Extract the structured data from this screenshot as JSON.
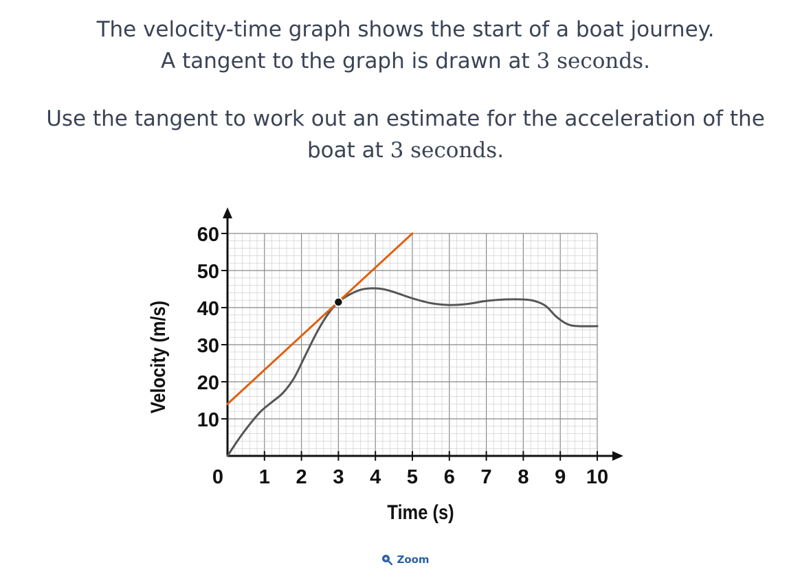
{
  "question": {
    "line1": "The velocity-time graph shows the start of a boat journey.",
    "line2_prefix": "A tangent to the graph is drawn at ",
    "line2_math": "3 seconds",
    "line2_suffix": ".",
    "line3": "Use the tangent to work out an estimate for the acceleration of the",
    "line4_prefix": "boat at ",
    "line4_math": "3 seconds",
    "line4_suffix": "."
  },
  "zoom": {
    "label": "Zoom",
    "icon": "zoom-in-icon"
  },
  "colors": {
    "curve": "#555555",
    "tangent": "#e06010",
    "grid_minor": "#c8c8c8",
    "grid_major": "#888888",
    "text": "#3a4356",
    "link": "#2b5fa8"
  },
  "chart_data": {
    "type": "line",
    "xlabel": "Time (s)",
    "ylabel": "Velocity (m/s)",
    "xlim": [
      0,
      10
    ],
    "ylim": [
      0,
      60
    ],
    "x_ticks": [
      "0",
      "1",
      "2",
      "3",
      "4",
      "5",
      "6",
      "7",
      "8",
      "9",
      "10"
    ],
    "y_ticks": [
      "10",
      "20",
      "30",
      "40",
      "50",
      "60"
    ],
    "grid": true,
    "series": [
      {
        "role": "curve",
        "x": [
          0,
          0.3,
          0.6,
          0.9,
          1.2,
          1.5,
          1.8,
          2.1,
          2.4,
          2.7,
          3.0,
          3.3,
          3.6,
          3.9,
          4.2,
          4.5,
          5.0,
          5.5,
          6.0,
          6.5,
          7.0,
          7.5,
          8.0,
          8.3,
          8.6,
          8.9,
          9.2,
          9.5,
          10.0
        ],
        "y": [
          0,
          4.5,
          8.5,
          12,
          14.5,
          17,
          21,
          27,
          33,
          38,
          41.5,
          43.5,
          44.8,
          45.2,
          45,
          44.2,
          42.5,
          41.2,
          40.7,
          41,
          41.8,
          42.2,
          42.2,
          41.8,
          40.5,
          37.5,
          35.5,
          35,
          35
        ]
      },
      {
        "role": "tangent",
        "x": [
          0,
          5
        ],
        "y": [
          14,
          60
        ]
      }
    ],
    "point": {
      "x": 3,
      "y": 41.5
    }
  }
}
